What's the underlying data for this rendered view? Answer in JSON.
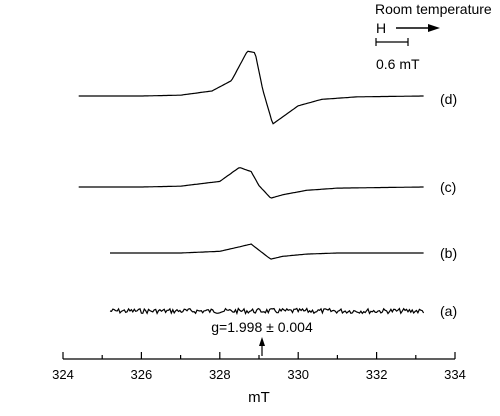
{
  "chart_data": {
    "type": "line",
    "title": "",
    "xlabel": "mT",
    "ylabel": "",
    "xlim": [
      324,
      334
    ],
    "x_ticks": [
      "324",
      "326",
      "328",
      "330",
      "332",
      "334"
    ],
    "grid": false,
    "annotations": {
      "condition": "Room temperature",
      "field_label": "H",
      "scale_bar": "0.6 mT",
      "g_value": "g=1.998 ± 0.004"
    },
    "series": [
      {
        "name": "(a)",
        "x": [
          325.2,
          326.0,
          327.0,
          328.0,
          328.6,
          329.0,
          329.4,
          330.0,
          331.0,
          332.0,
          333.2
        ],
        "values": [
          0.0,
          0.0,
          0.0,
          0.0,
          0.0,
          0.0,
          0.0,
          0.0,
          0.0,
          0.0,
          0.0
        ]
      },
      {
        "name": "(b)",
        "x": [
          325.2,
          327.0,
          328.0,
          328.5,
          328.8,
          329.0,
          329.3,
          329.6,
          330.2,
          331.0,
          333.2
        ],
        "values": [
          0.0,
          0.0,
          0.06,
          0.22,
          0.32,
          0.1,
          -0.22,
          -0.12,
          -0.04,
          0.0,
          0.0
        ]
      },
      {
        "name": "(c)",
        "x": [
          324.4,
          326.0,
          327.0,
          328.0,
          328.5,
          328.8,
          329.0,
          329.3,
          329.6,
          330.2,
          331.0,
          333.2
        ],
        "values": [
          0.0,
          0.0,
          0.03,
          0.2,
          0.7,
          0.55,
          0.05,
          -0.4,
          -0.28,
          -0.12,
          -0.04,
          0.0
        ]
      },
      {
        "name": "(d)",
        "x": [
          324.4,
          326.0,
          327.0,
          327.8,
          328.3,
          328.7,
          328.9,
          329.1,
          329.35,
          329.6,
          330.0,
          330.6,
          331.5,
          333.2
        ],
        "values": [
          0.0,
          0.0,
          0.03,
          0.18,
          0.55,
          1.6,
          1.55,
          0.2,
          -1.0,
          -0.75,
          -0.35,
          -0.12,
          -0.03,
          0.0
        ]
      }
    ]
  }
}
